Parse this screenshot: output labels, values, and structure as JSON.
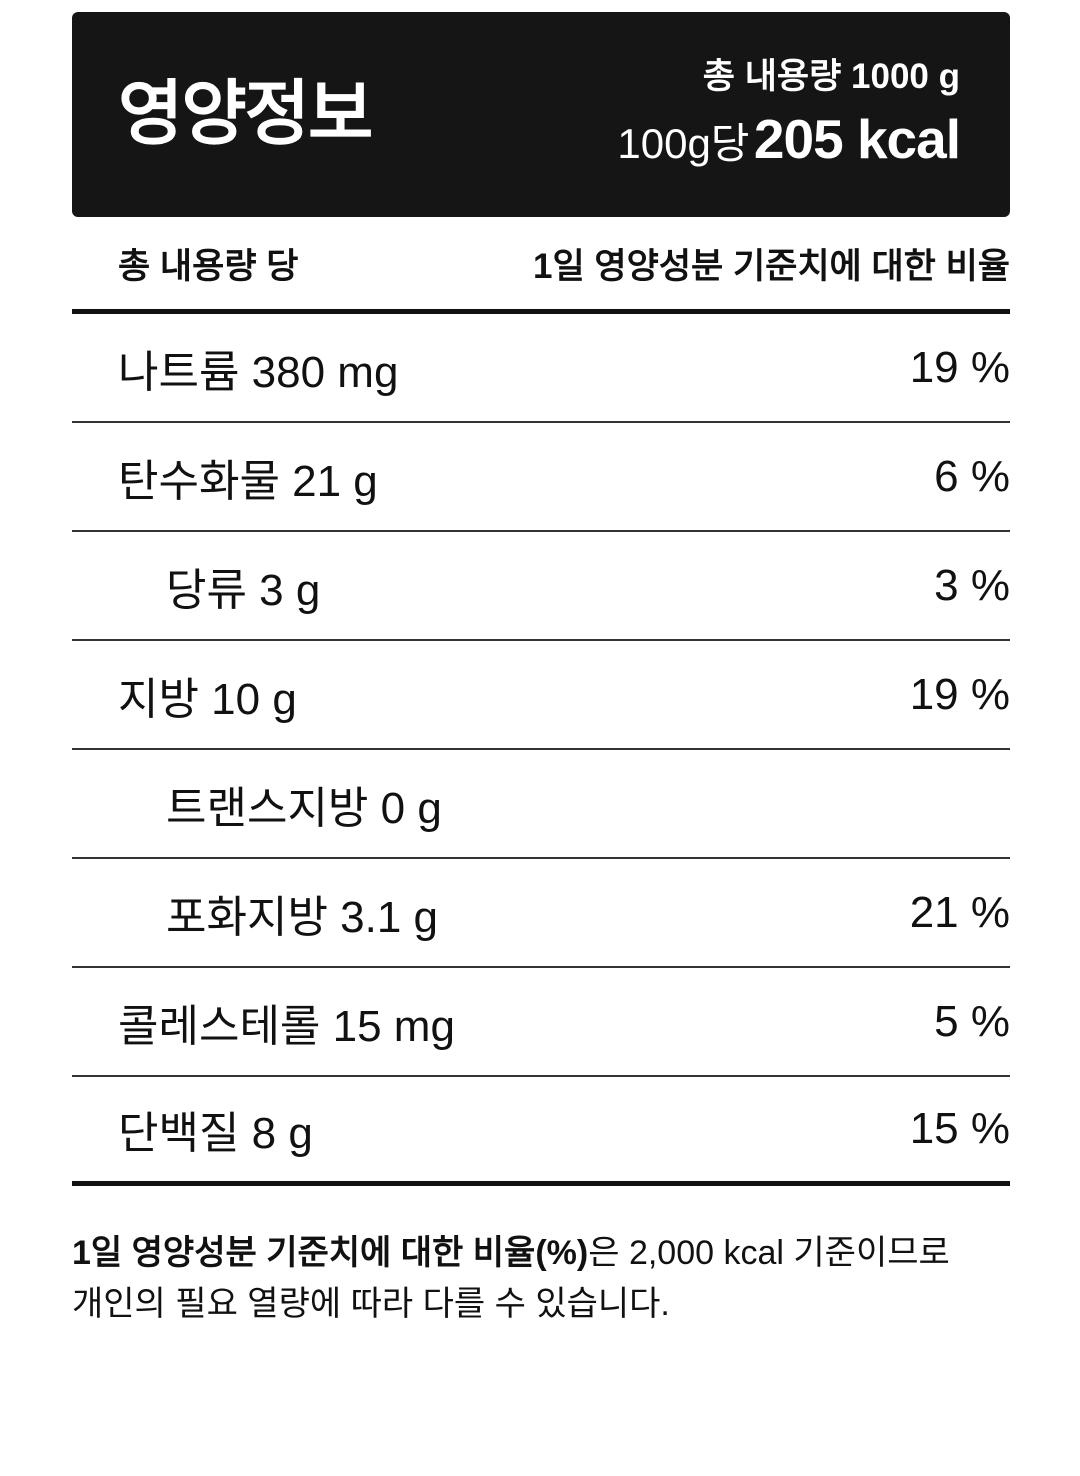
{
  "header": {
    "title": "영양정보",
    "total_content": "총 내용량 1000 g",
    "per_serving": "100g당",
    "calories": "205 kcal"
  },
  "table": {
    "column_left": "총 내용량 당",
    "column_right": "1일 영양성분 기준치에 대한 비율",
    "rows": [
      {
        "nutrient": "나트륨",
        "amount": "380 mg",
        "percent": "19 %",
        "indent": false
      },
      {
        "nutrient": "탄수화물",
        "amount": "21 g",
        "percent": "6 %",
        "indent": false
      },
      {
        "nutrient": "당류",
        "amount": "3 g",
        "percent": "3 %",
        "indent": true
      },
      {
        "nutrient": "지방",
        "amount": "10 g",
        "percent": "19 %",
        "indent": false
      },
      {
        "nutrient": "트랜스지방",
        "amount": "0 g",
        "percent": "",
        "indent": true
      },
      {
        "nutrient": "포화지방",
        "amount": "3.1 g",
        "percent": "21 %",
        "indent": true
      },
      {
        "nutrient": "콜레스테롤",
        "amount": "15 mg",
        "percent": "5 %",
        "indent": false
      },
      {
        "nutrient": "단백질",
        "amount": "8 g",
        "percent": "15 %",
        "indent": false
      }
    ]
  },
  "footnote": {
    "bold": "1일 영양성분 기준치에 대한 비율(%)",
    "rest": "은 2,000 kcal 기준이므로",
    "line2": "개인의 필요 열량에 따라 다를 수 있습니다."
  },
  "colors": {
    "banner_background": "#151515",
    "text": "#111111",
    "thin_rule": "#333333",
    "thick_rule": "#111111",
    "background": "#ffffff"
  }
}
